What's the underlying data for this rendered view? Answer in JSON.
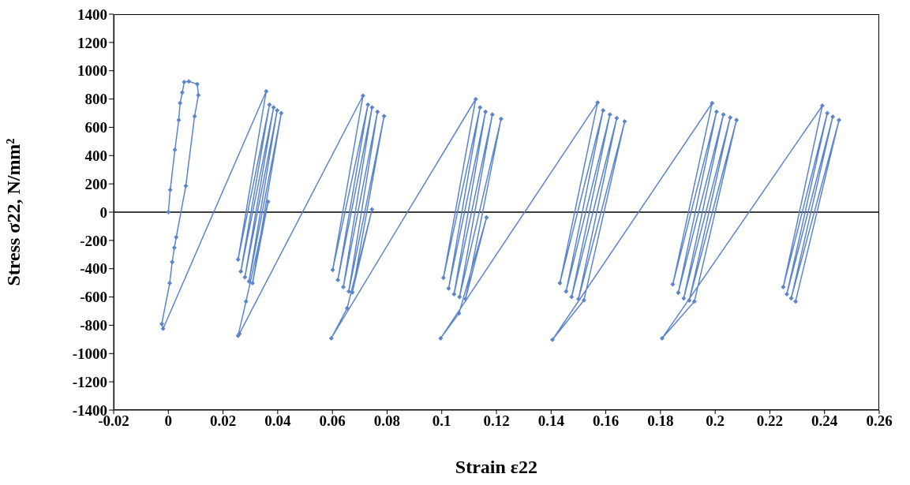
{
  "chart_data": {
    "type": "line",
    "xlabel": "Strain ε22",
    "ylabel": "Stress σ22, N/mm²",
    "xlim": [
      -0.02,
      0.26
    ],
    "xticks": [
      -0.02,
      0,
      0.02,
      0.04,
      0.06,
      0.08,
      0.1,
      0.12,
      0.14,
      0.16,
      0.18,
      0.2,
      0.22,
      0.24,
      0.26
    ],
    "ylim": [
      -1400,
      1400
    ],
    "yticks": [
      -1400,
      -1200,
      -1000,
      -800,
      -600,
      -400,
      -200,
      0,
      200,
      400,
      600,
      800,
      1000,
      1200,
      1400
    ],
    "marker": "diamond",
    "line_style": "solid",
    "ref_lines": [
      {
        "axis": "y",
        "value": 0,
        "color": "#000000"
      }
    ],
    "series": [
      {
        "color": "#5a85cc",
        "x": [
          0,
          0.0007,
          0.0024,
          0.0038,
          0.0043,
          0.0051,
          0.0058,
          0.0075,
          0.0106,
          0.011,
          0.0096,
          0.0064,
          0.0029,
          0.0022,
          0.0014,
          0.0005,
          -0.0024,
          -0.0019,
          0.0358,
          0.0255,
          0.037,
          0.0265,
          0.0385,
          0.028,
          0.0398,
          0.0295,
          0.0413,
          0.0308,
          0.0365,
          0.0284,
          0.0255,
          0.026,
          0.0712,
          0.0601,
          0.073,
          0.062,
          0.0745,
          0.064,
          0.0765,
          0.066,
          0.0789,
          0.0673,
          0.0745,
          0.0654,
          0.0596,
          0.1124,
          0.1006,
          0.114,
          0.1025,
          0.116,
          0.1045,
          0.1185,
          0.1065,
          0.1217,
          0.1087,
          0.1164,
          0.1063,
          0.0996,
          0.157,
          0.1432,
          0.159,
          0.1455,
          0.1615,
          0.1475,
          0.164,
          0.15,
          0.1669,
          0.152,
          0.1405,
          0.1989,
          0.1845,
          0.2005,
          0.1865,
          0.203,
          0.1885,
          0.2055,
          0.1905,
          0.2078,
          0.1924,
          0.1806,
          0.2392,
          0.2249,
          0.241,
          0.2262,
          0.243,
          0.2278,
          0.2453,
          0.2294
        ],
        "values": [
          0,
          158,
          440,
          651,
          771,
          846,
          920,
          925,
          905,
          827,
          678,
          186,
          -177,
          -251,
          -353,
          -502,
          -790,
          -824,
          855,
          -335,
          760,
          -420,
          740,
          -460,
          720,
          -490,
          700,
          -502,
          74,
          -632,
          -874,
          -860,
          824,
          -409,
          760,
          -480,
          740,
          -530,
          710,
          -560,
          679,
          -567,
          19,
          -679,
          -892,
          799,
          -465,
          740,
          -540,
          710,
          -580,
          690,
          -600,
          660,
          -613,
          -37,
          -716,
          -892,
          775,
          -502,
          720,
          -560,
          690,
          -600,
          665,
          -615,
          641,
          -623,
          -902,
          771,
          -511,
          710,
          -570,
          690,
          -610,
          670,
          -625,
          651,
          -632,
          -892,
          753,
          -530,
          700,
          -580,
          675,
          -610,
          651,
          -632
        ]
      }
    ]
  }
}
